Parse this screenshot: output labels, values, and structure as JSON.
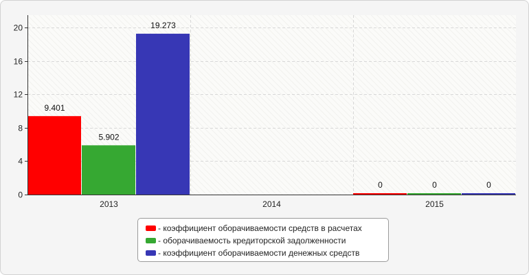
{
  "chart_data": {
    "type": "bar",
    "categories": [
      "2013",
      "2014",
      "2015"
    ],
    "series": [
      {
        "name": "- коэффициент оборачиваемости средств в расчетах",
        "color": "#ff0000",
        "values": [
          9.401,
          null,
          0
        ]
      },
      {
        "name": "- оборачиваемость кредиторской задолженности",
        "color": "#36a832",
        "values": [
          5.902,
          null,
          0
        ]
      },
      {
        "name": "- коэффициент оборачиваемости денежных средств",
        "color": "#3737b5",
        "values": [
          19.273,
          null,
          0
        ]
      }
    ],
    "data_labels": [
      [
        "9.401",
        "",
        "0"
      ],
      [
        "5.902",
        "",
        "0"
      ],
      [
        "19.273",
        "",
        "0"
      ]
    ],
    "yticks": [
      "0",
      "4",
      "8",
      "12",
      "16",
      "20"
    ],
    "ylim": [
      0,
      21.5
    ],
    "grid": true,
    "legend_position": "bottom",
    "xlabel": "",
    "ylabel": "",
    "title": ""
  }
}
